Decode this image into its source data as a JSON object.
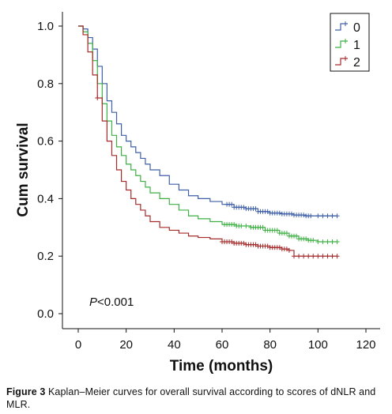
{
  "chart_data": {
    "type": "line",
    "subtype": "kaplan-meier step",
    "xlabel": "Time (months)",
    "ylabel": "Cum survival",
    "xlim": [
      0,
      120
    ],
    "ylim": [
      0,
      1
    ],
    "xticks": [
      0,
      20,
      40,
      60,
      80,
      100,
      120
    ],
    "yticks": [
      "0.0",
      "0.2",
      "0.4",
      "0.6",
      "0.8",
      "1.0"
    ],
    "legend_position": "top-right",
    "annotation": {
      "italic": "P",
      "rest": "<0.001"
    },
    "series": [
      {
        "name": "0",
        "color": "#3f5fa8",
        "points": [
          [
            0,
            1.0
          ],
          [
            2,
            0.99
          ],
          [
            4,
            0.96
          ],
          [
            6,
            0.92
          ],
          [
            8,
            0.86
          ],
          [
            10,
            0.8
          ],
          [
            12,
            0.74
          ],
          [
            14,
            0.7
          ],
          [
            16,
            0.66
          ],
          [
            18,
            0.62
          ],
          [
            20,
            0.6
          ],
          [
            22,
            0.58
          ],
          [
            24,
            0.56
          ],
          [
            26,
            0.54
          ],
          [
            28,
            0.52
          ],
          [
            30,
            0.5
          ],
          [
            34,
            0.48
          ],
          [
            38,
            0.45
          ],
          [
            42,
            0.43
          ],
          [
            46,
            0.41
          ],
          [
            50,
            0.4
          ],
          [
            55,
            0.39
          ],
          [
            60,
            0.38
          ],
          [
            65,
            0.37
          ],
          [
            70,
            0.365
          ],
          [
            75,
            0.355
          ],
          [
            80,
            0.35
          ],
          [
            85,
            0.347
          ],
          [
            90,
            0.343
          ],
          [
            95,
            0.34
          ],
          [
            100,
            0.34
          ],
          [
            108,
            0.34
          ]
        ],
        "censor_x": [
          62,
          63,
          64,
          65,
          66,
          67,
          68,
          69,
          70,
          71,
          72,
          73,
          74,
          75,
          76,
          77,
          78,
          79,
          80,
          81,
          82,
          83,
          84,
          85,
          86,
          87,
          88,
          89,
          90,
          91,
          92,
          93,
          94,
          95,
          96,
          97,
          100,
          102,
          104,
          106,
          108
        ]
      },
      {
        "name": "1",
        "color": "#3cb043",
        "points": [
          [
            0,
            1.0
          ],
          [
            2,
            0.98
          ],
          [
            4,
            0.94
          ],
          [
            6,
            0.88
          ],
          [
            8,
            0.8
          ],
          [
            10,
            0.73
          ],
          [
            12,
            0.67
          ],
          [
            14,
            0.62
          ],
          [
            16,
            0.58
          ],
          [
            18,
            0.55
          ],
          [
            20,
            0.52
          ],
          [
            22,
            0.5
          ],
          [
            24,
            0.48
          ],
          [
            26,
            0.46
          ],
          [
            28,
            0.44
          ],
          [
            30,
            0.42
          ],
          [
            34,
            0.4
          ],
          [
            38,
            0.38
          ],
          [
            42,
            0.36
          ],
          [
            46,
            0.34
          ],
          [
            50,
            0.33
          ],
          [
            55,
            0.32
          ],
          [
            60,
            0.31
          ],
          [
            66,
            0.305
          ],
          [
            72,
            0.3
          ],
          [
            78,
            0.29
          ],
          [
            84,
            0.28
          ],
          [
            88,
            0.27
          ],
          [
            92,
            0.26
          ],
          [
            96,
            0.255
          ],
          [
            100,
            0.25
          ],
          [
            108,
            0.25
          ]
        ],
        "censor_x": [
          61,
          62,
          63,
          64,
          65,
          66,
          67,
          68,
          70,
          72,
          73,
          74,
          75,
          76,
          77,
          78,
          79,
          80,
          81,
          82,
          83,
          84,
          85,
          86,
          87,
          88,
          89,
          90,
          91,
          92,
          93,
          94,
          95,
          96,
          97,
          98,
          100,
          102,
          104,
          106,
          108
        ]
      },
      {
        "name": "2",
        "color": "#a52a2a",
        "points": [
          [
            0,
            1.0
          ],
          [
            2,
            0.97
          ],
          [
            4,
            0.91
          ],
          [
            6,
            0.83
          ],
          [
            8,
            0.75
          ],
          [
            10,
            0.67
          ],
          [
            12,
            0.6
          ],
          [
            14,
            0.55
          ],
          [
            16,
            0.5
          ],
          [
            18,
            0.46
          ],
          [
            20,
            0.43
          ],
          [
            22,
            0.4
          ],
          [
            24,
            0.38
          ],
          [
            26,
            0.36
          ],
          [
            28,
            0.34
          ],
          [
            30,
            0.32
          ],
          [
            34,
            0.3
          ],
          [
            38,
            0.29
          ],
          [
            42,
            0.28
          ],
          [
            46,
            0.27
          ],
          [
            50,
            0.265
          ],
          [
            55,
            0.26
          ],
          [
            60,
            0.25
          ],
          [
            65,
            0.245
          ],
          [
            70,
            0.24
          ],
          [
            75,
            0.235
          ],
          [
            80,
            0.23
          ],
          [
            85,
            0.225
          ],
          [
            88,
            0.22
          ],
          [
            90,
            0.2
          ],
          [
            100,
            0.2
          ],
          [
            108,
            0.2
          ]
        ],
        "censor_x": [
          8,
          60,
          61,
          62,
          63,
          64,
          65,
          66,
          67,
          68,
          69,
          70,
          71,
          72,
          73,
          74,
          75,
          76,
          77,
          78,
          79,
          80,
          81,
          82,
          83,
          84,
          85,
          86,
          87,
          88,
          90,
          92,
          94,
          96,
          98,
          100,
          102,
          104,
          106,
          108
        ]
      }
    ]
  },
  "caption": {
    "label": "Figure 3",
    "text": " Kaplan–Meier curves for overall survival according to scores of dNLR and MLR."
  }
}
